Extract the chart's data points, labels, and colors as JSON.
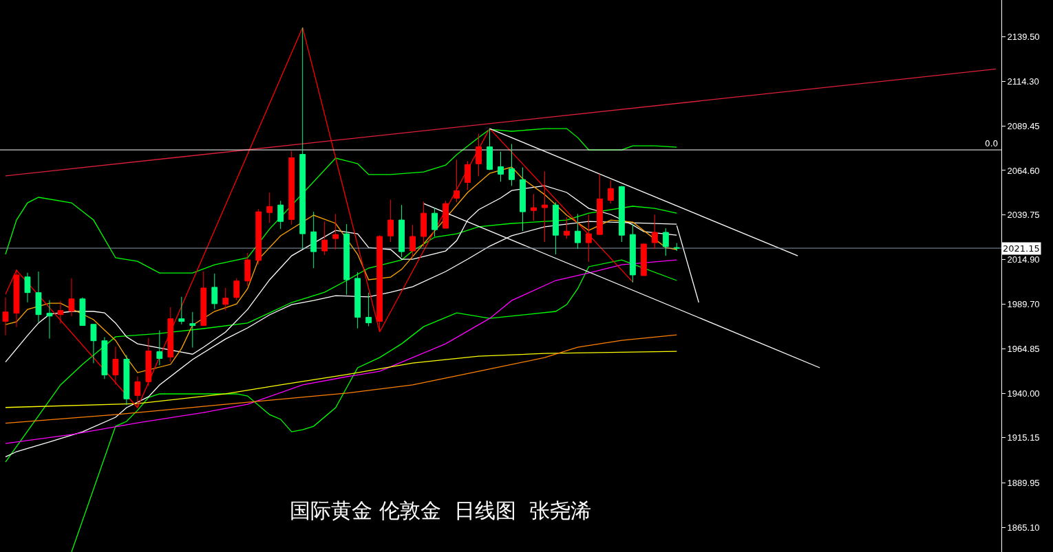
{
  "chart_data": {
    "type": "candlestick",
    "annotations": [
      "国际黄金 伦敦金  日线图  张尧浠",
      {
        "text": "0.0",
        "y": 2076.1
      }
    ],
    "categories": [
      null,
      null,
      null,
      null,
      null,
      null,
      null,
      null,
      null,
      null,
      null,
      null,
      null,
      null,
      null,
      null,
      null,
      null,
      null,
      null,
      null,
      null,
      null,
      null,
      null,
      null,
      null,
      null,
      null,
      null,
      null,
      null,
      null,
      null,
      null,
      null,
      null,
      null,
      null,
      null,
      null,
      null,
      null,
      null,
      null,
      null,
      null,
      null,
      null,
      null,
      null,
      null,
      null,
      null,
      null,
      null,
      null,
      null,
      null,
      null,
      null,
      null,
      null,
      null,
      null,
      null,
      null,
      null,
      null,
      null,
      null,
      null,
      null,
      null,
      null,
      null,
      null,
      null,
      null,
      null,
      null,
      null,
      null,
      null,
      null,
      null,
      null,
      null,
      null,
      null,
      null
    ],
    "ohlc": [
      [
        1980.2,
        1993.6,
        1972.5,
        1985.5
      ],
      [
        1984.8,
        2009.3,
        1977.1,
        2006.2
      ],
      [
        2005.1,
        2007.4,
        1990.9,
        1996.3
      ],
      [
        1996.3,
        2008.1,
        1979.8,
        1984.0
      ],
      [
        1984.8,
        1992.1,
        1970.6,
        1983.2
      ],
      [
        1984.0,
        1991.7,
        1979.0,
        1986.3
      ],
      [
        1985.9,
        2004.3,
        1983.2,
        1992.8
      ],
      [
        1992.8,
        1993.6,
        1977.9,
        1977.9
      ],
      [
        1978.6,
        1978.6,
        1956.8,
        1969.4
      ],
      [
        1969.4,
        1971.4,
        1948.0,
        1950.3
      ],
      [
        1950.3,
        1966.0,
        1944.9,
        1959.1
      ],
      [
        1959.1,
        1961.4,
        1933.4,
        1936.9
      ],
      [
        1938.8,
        1949.5,
        1932.7,
        1946.5
      ],
      [
        1946.5,
        1971.0,
        1944.2,
        1963.7
      ],
      [
        1963.3,
        1975.2,
        1955.7,
        1959.5
      ],
      [
        1960.3,
        1988.2,
        1957.6,
        1981.7
      ],
      [
        1981.7,
        1994.0,
        1978.6,
        1980.2
      ],
      [
        1979.0,
        1985.5,
        1965.6,
        1977.9
      ],
      [
        1977.9,
        2008.1,
        1977.9,
        1998.9
      ],
      [
        1999.3,
        2007.0,
        1987.1,
        1990.1
      ],
      [
        1989.7,
        1998.9,
        1986.3,
        1993.2
      ],
      [
        1993.6,
        2004.3,
        1992.1,
        2002.8
      ],
      [
        2002.8,
        2018.5,
        2000.1,
        2014.6
      ],
      [
        2014.3,
        2043.0,
        2012.0,
        2041.5
      ],
      [
        2041.1,
        2052.2,
        2035.3,
        2044.5
      ],
      [
        2045.3,
        2047.6,
        2031.9,
        2036.1
      ],
      [
        2037.2,
        2075.5,
        2034.2,
        2071.7
      ],
      [
        2073.6,
        2144.5,
        2020.8,
        2029.2
      ],
      [
        2030.3,
        2041.5,
        2010.0,
        2019.2
      ],
      [
        2019.6,
        2036.1,
        2017.3,
        2025.7
      ],
      [
        2026.5,
        2040.3,
        2020.4,
        2028.8
      ],
      [
        2029.2,
        2034.6,
        1995.1,
        2003.5
      ],
      [
        2004.3,
        2007.8,
        1976.3,
        1982.5
      ],
      [
        1982.5,
        1996.3,
        1977.5,
        1979.4
      ],
      [
        1980.2,
        2028.4,
        1974.8,
        2027.7
      ],
      [
        2028.0,
        2048.3,
        2024.6,
        2036.9
      ],
      [
        2036.9,
        2045.3,
        2016.2,
        2019.2
      ],
      [
        2019.6,
        2034.2,
        2016.2,
        2027.7
      ],
      [
        2027.7,
        2047.2,
        2021.9,
        2040.7
      ],
      [
        2040.7,
        2043.8,
        2027.7,
        2031.5
      ],
      [
        2032.3,
        2047.6,
        2032.3,
        2046.1
      ],
      [
        2049.1,
        2070.6,
        2046.8,
        2053.3
      ],
      [
        2057.9,
        2069.8,
        2053.7,
        2067.9
      ],
      [
        2068.3,
        2085.1,
        2061.4,
        2077.8
      ],
      [
        2077.8,
        2088.2,
        2064.8,
        2065.2
      ],
      [
        2066.7,
        2075.1,
        2058.3,
        2062.5
      ],
      [
        2065.6,
        2079.4,
        2056.0,
        2059.5
      ],
      [
        2059.5,
        2066.3,
        2030.7,
        2041.5
      ],
      [
        2042.2,
        2051.4,
        2036.5,
        2043.8
      ],
      [
        2043.8,
        2064.1,
        2024.6,
        2045.3
      ],
      [
        2045.3,
        2046.8,
        2017.7,
        2028.4
      ],
      [
        2028.4,
        2038.4,
        2026.5,
        2030.7
      ],
      [
        2030.7,
        2040.3,
        2020.8,
        2024.2
      ],
      [
        2024.2,
        2039.9,
        2013.5,
        2029.2
      ],
      [
        2028.8,
        2062.5,
        2028.8,
        2048.7
      ],
      [
        2047.9,
        2059.1,
        2046.1,
        2054.5
      ],
      [
        2055.6,
        2056.0,
        2024.6,
        2028.4
      ],
      [
        2028.8,
        2034.6,
        2002.0,
        2006.2
      ],
      [
        2005.8,
        2023.8,
        2005.8,
        2023.5
      ],
      [
        2024.2,
        2039.9,
        2020.8,
        2030.0
      ],
      [
        2030.0,
        2032.3,
        2016.9,
        2022.0
      ],
      [
        2021.5,
        2024.0,
        2019.6,
        2021.15
      ],
      null,
      null,
      null,
      null,
      null,
      null,
      null,
      null,
      null,
      null,
      null,
      null,
      null,
      null,
      null,
      null,
      null,
      null,
      null,
      null,
      null,
      null,
      null,
      null,
      null,
      null,
      null,
      null,
      null
    ],
    "colors": [
      "#ff0000",
      "#ff0000",
      "#00ff80",
      "#00ff80",
      "#00ff80",
      "#ff0000",
      "#ff0000",
      "#00ff80",
      "#00ff80",
      "#00ff80",
      "#ff0000",
      "#00ff80",
      "#ff0000",
      "#ff0000",
      "#00ff80",
      "#ff0000",
      "#00ff80",
      "#00ff80",
      "#ff0000",
      "#00ff80",
      "#ff0000",
      "#ff0000",
      "#ff0000",
      "#ff0000",
      "#ff0000",
      "#00ff80",
      "#ff0000",
      "#00ff80",
      "#00ff80",
      "#ff0000",
      "#ff0000",
      "#00ff80",
      "#00ff80",
      "#00ff80",
      "#ff0000",
      "#ff0000",
      "#00ff80",
      "#ff0000",
      "#ff0000",
      "#00ff80",
      "#ff0000",
      "#ff0000",
      "#ff0000",
      "#ff0000",
      "#00ff80",
      "#00ff80",
      "#00ff80",
      "#00ff80",
      "#ff0000",
      "#ff0000",
      "#00ff80",
      "#ff0000",
      "#00ff80",
      "#ff0000",
      "#ff0000",
      "#ff0000",
      "#00ff80",
      "#00ff80",
      "#ff0000",
      "#ff0000",
      "#00ff80",
      "#00ff80",
      null,
      null,
      null,
      null,
      null,
      null,
      null,
      null,
      null,
      null,
      null,
      null,
      null,
      null,
      null,
      null,
      null,
      null,
      null,
      null,
      null,
      null,
      null,
      null,
      null,
      null,
      null,
      null,
      null
    ],
    "series": [
      {
        "type": "line",
        "color": "#00ff00",
        "values": [
          2017.7,
          2036.9,
          2046.5,
          2049.6,
          null,
          null,
          2046.5,
          null,
          2036.9,
          null,
          2015.8,
          null,
          2013.8,
          null,
          2007.3,
          null,
          null,
          2007.3,
          null,
          2011.9,
          null,
          null,
          2015.8,
          null,
          2031.9,
          null,
          null,
          null,
          null,
          null,
          2071.5,
          null,
          2068.4,
          2062.3,
          null,
          2062.3,
          null,
          null,
          2063.8,
          null,
          2067.6,
          2073.4,
          null,
          2083.0,
          2087.6,
          null,
          2086.5,
          null,
          null,
          2088.0,
          null,
          2088.0,
          2083.0,
          2076.1,
          null,
          null,
          2076.1,
          2078.4,
          null,
          2078.4,
          null,
          2077.6,
          null,
          null,
          null,
          null,
          null,
          null,
          null,
          null,
          null,
          null,
          null,
          null,
          null,
          null,
          null,
          null,
          null,
          null,
          null,
          null,
          null,
          null,
          null,
          null,
          null,
          null,
          null,
          null,
          null
        ]
      },
      {
        "type": "line",
        "color": "#00ff00",
        "values": [
          1901.6,
          null,
          null,
          null,
          null,
          1944.7,
          null,
          1956.2,
          null,
          null,
          1971.6,
          null,
          null,
          null,
          1973.5,
          null,
          null,
          null,
          1976.2,
          null,
          null,
          null,
          1979.3,
          null,
          1985.0,
          null,
          1990.8,
          null,
          null,
          1996.5,
          null,
          2003.1,
          null,
          2010.0,
          null,
          null,
          2014.6,
          2019.6,
          null,
          2027.3,
          null,
          2029.2,
          null,
          2033.1,
          null,
          null,
          2035.0,
          null,
          null,
          2036.1,
          null,
          2036.9,
          null,
          2040.7,
          null,
          null,
          null,
          2044.6,
          null,
          2043.4,
          null,
          2040.7,
          null,
          null,
          null,
          null,
          null,
          null,
          null,
          null,
          null,
          null,
          null,
          null,
          null,
          null,
          null,
          null,
          null,
          null,
          null,
          null,
          null,
          null,
          null,
          null,
          null,
          null,
          null,
          null,
          null
        ]
      },
      {
        "type": "line",
        "color": "#00ff00",
        "values": [
          null,
          null,
          null,
          null,
          null,
          null,
          1851.3,
          null,
          null,
          null,
          1921.6,
          1924.3,
          1930.5,
          1937.7,
          1939.7,
          null,
          null,
          1939.7,
          null,
          null,
          null,
          1939.7,
          1938.5,
          null,
          1928.1,
          1925.5,
          1918.5,
          1919.7,
          1921.6,
          null,
          1932.0,
          null,
          1954.3,
          null,
          1960.0,
          null,
          1967.7,
          null,
          1977.3,
          null,
          null,
          1985.0,
          null,
          null,
          1981.9,
          null,
          null,
          null,
          null,
          null,
          1985.8,
          1989.6,
          1998.5,
          2010.8,
          null,
          null,
          2014.6,
          null,
          null,
          null,
          null,
          2003.1,
          null,
          null,
          null,
          null,
          null,
          null,
          null,
          null,
          null,
          null,
          null,
          null,
          null,
          null,
          null,
          null,
          null,
          null,
          null,
          null,
          null,
          null,
          null,
          null,
          null,
          null,
          null,
          null,
          null
        ]
      },
      {
        "type": "line",
        "color": "#ffffff",
        "values": [
          1957.5,
          null,
          1972.3,
          1979.3,
          1984.2,
          null,
          1985.8,
          null,
          1985.8,
          1985.0,
          1979.3,
          1971.6,
          1967.7,
          null,
          null,
          null,
          null,
          1961.9,
          1965.8,
          null,
          1974.3,
          null,
          1986.9,
          null,
          2003.5,
          null,
          2016.9,
          null,
          null,
          null,
          2031.1,
          null,
          2029.2,
          2021.5,
          null,
          2020.4,
          2015.0,
          2015.0,
          null,
          null,
          2019.6,
          2025.4,
          2036.9,
          2042.7,
          null,
          2049.2,
          2053.4,
          null,
          null,
          2056.1,
          null,
          2052.3,
          null,
          2043.4,
          null,
          2040.0,
          null,
          2034.2,
          2030.4,
          null,
          null,
          2028.4,
          null,
          null,
          null,
          null,
          null,
          null,
          null,
          null,
          null,
          null,
          null,
          null,
          null,
          null,
          null,
          null,
          null,
          null,
          null,
          null,
          null,
          null,
          null,
          null,
          null,
          null,
          null,
          null,
          null
        ]
      },
      {
        "type": "line",
        "color": "#ffffff",
        "values": [
          1904.5,
          1907.4,
          null,
          null,
          1912.8,
          null,
          null,
          1918.5,
          null,
          null,
          1926.6,
          1932.0,
          null,
          1938.1,
          1944.7,
          null,
          null,
          1958.9,
          null,
          null,
          1970.4,
          null,
          1976.6,
          null,
          1983.9,
          null,
          1989.6,
          null,
          1991.9,
          null,
          1994.6,
          null,
          null,
          1993.9,
          null,
          1996.5,
          null,
          1999.6,
          null,
          null,
          2008.1,
          null,
          2015.0,
          null,
          2022.3,
          null,
          2028.1,
          null,
          null,
          2033.1,
          null,
          null,
          null,
          2036.1,
          null,
          null,
          null,
          null,
          null,
          null,
          null,
          2034.6,
          null,
          null,
          null,
          null,
          null,
          null,
          null,
          null,
          null,
          null,
          null,
          null,
          null,
          null,
          null,
          null,
          null,
          null,
          null,
          null,
          null,
          null,
          null,
          null,
          null,
          null,
          null,
          null,
          null
        ]
      },
      {
        "type": "line",
        "color": "#ffa500",
        "values": [
          1978.5,
          1980.0,
          1986.9,
          null,
          1990.4,
          1990.4,
          null,
          null,
          1981.2,
          null,
          1969.6,
          1960.0,
          1951.6,
          null,
          null,
          1956.2,
          1965.1,
          1978.1,
          null,
          1985.8,
          null,
          1990.0,
          1998.5,
          2015.0,
          null,
          2028.1,
          null,
          null,
          2039.6,
          null,
          2035.0,
          null,
          2017.7,
          2003.5,
          null,
          2005.0,
          2009.3,
          null,
          null,
          null,
          null,
          null,
          2052.3,
          null,
          2063.0,
          null,
          2066.5,
          2060.0,
          null,
          2051.1,
          null,
          2039.6,
          null,
          2031.1,
          null,
          2036.9,
          null,
          2035.7,
          null,
          null,
          2021.5,
          2020.4,
          null,
          null,
          null,
          null,
          null,
          null,
          null,
          null,
          null,
          null,
          null,
          null,
          null,
          null,
          null,
          null,
          null,
          null,
          null,
          null,
          null,
          null,
          null,
          null,
          null,
          null,
          null,
          null,
          null
        ]
      },
      {
        "type": "line",
        "color": "#ff00ff",
        "values": [
          1912.0,
          null,
          null,
          null,
          null,
          null,
          1917.0,
          null,
          null,
          null,
          null,
          null,
          1923.5,
          null,
          null,
          null,
          null,
          null,
          1929.3,
          null,
          null,
          null,
          1933.9,
          null,
          null,
          null,
          null,
          1944.7,
          null,
          null,
          null,
          1949.3,
          null,
          null,
          1952.3,
          null,
          null,
          1960.0,
          null,
          null,
          1967.7,
          null,
          null,
          null,
          1981.9,
          null,
          1991.9,
          null,
          null,
          null,
          2003.1,
          null,
          null,
          2007.3,
          null,
          null,
          2011.9,
          null,
          null,
          null,
          null,
          2014.6,
          null,
          null,
          null,
          null,
          null,
          null,
          null,
          null,
          null,
          null,
          null,
          null,
          null,
          null,
          null,
          null,
          null,
          null,
          null,
          null,
          null,
          null,
          null,
          null,
          null,
          null,
          null,
          null,
          null
        ]
      },
      {
        "type": "line",
        "color": "#ffff00",
        "values": [
          1932.1,
          null,
          null,
          null,
          null,
          null,
          null,
          null,
          null,
          null,
          null,
          null,
          1934.3,
          null,
          null,
          null,
          null,
          null,
          null,
          null,
          1939.7,
          null,
          null,
          null,
          null,
          1944.7,
          null,
          null,
          null,
          null,
          null,
          1950.5,
          null,
          null,
          null,
          null,
          null,
          1956.9,
          null,
          null,
          null,
          null,
          null,
          1960.8,
          null,
          null,
          null,
          null,
          null,
          1962.3,
          null,
          null,
          null,
          null,
          null,
          null,
          null,
          null,
          null,
          null,
          null,
          1963.5,
          null,
          null,
          null,
          null,
          null,
          null,
          null,
          null,
          null,
          null,
          null,
          null,
          null,
          null,
          null,
          null,
          null,
          null,
          null,
          null,
          null,
          null,
          null,
          null,
          null,
          null,
          null,
          null,
          null
        ]
      },
      {
        "type": "line",
        "color": "#ff8000",
        "values": [
          1923.3,
          null,
          null,
          null,
          null,
          null,
          null,
          null,
          null,
          null,
          1928.1,
          null,
          null,
          null,
          null,
          null,
          null,
          null,
          null,
          null,
          1933.9,
          null,
          null,
          null,
          null,
          null,
          null,
          null,
          null,
          null,
          null,
          1940.1,
          null,
          null,
          null,
          null,
          null,
          1944.7,
          null,
          null,
          null,
          null,
          null,
          1952.3,
          null,
          null,
          null,
          null,
          null,
          1960.0,
          null,
          null,
          1965.8,
          null,
          null,
          null,
          1969.6,
          null,
          null,
          null,
          null,
          1972.7,
          null,
          null,
          null,
          null,
          null,
          null,
          null,
          null,
          null,
          null,
          null,
          null,
          null,
          null,
          null,
          null,
          null,
          null,
          null,
          null,
          null,
          null,
          null,
          null,
          null,
          null,
          null,
          null,
          null
        ]
      },
      {
        "type": "line",
        "color": "#e0203a",
        "values": [
          2061.6,
          null,
          null,
          null,
          null,
          null,
          null,
          null,
          null,
          null,
          null,
          null,
          null,
          null,
          null,
          null,
          null,
          null,
          null,
          null,
          null,
          null,
          null,
          null,
          null,
          null,
          null,
          null,
          null,
          null,
          null,
          null,
          null,
          null,
          null,
          null,
          null,
          null,
          null,
          null,
          null,
          null,
          null,
          null,
          null,
          null,
          null,
          null,
          null,
          null,
          null,
          null,
          null,
          null,
          null,
          null,
          null,
          null,
          null,
          null,
          null,
          null,
          null,
          null,
          null,
          null,
          null,
          null,
          null,
          null,
          null,
          null,
          null,
          null,
          null,
          null,
          null,
          null,
          null,
          null,
          null,
          null,
          null,
          null,
          null,
          null,
          null,
          null,
          null,
          null,
          2121.3
        ]
      },
      {
        "type": "line",
        "color": "#ff0000",
        "values": [
          1995.4,
          2008.8,
          null,
          null,
          null,
          null,
          null,
          null,
          null,
          null,
          null,
          null,
          1932.0,
          null,
          null,
          null,
          null,
          null,
          null,
          null,
          null,
          null,
          null,
          null,
          null,
          null,
          null,
          2144.5,
          null,
          null,
          null,
          null,
          null,
          null,
          1974.3,
          null,
          null,
          null,
          null,
          null,
          null,
          null,
          null,
          null,
          2088.0,
          null,
          null,
          null,
          null,
          null,
          null,
          null,
          null,
          null,
          null,
          null,
          null,
          2002.3,
          null,
          null,
          null,
          null,
          null,
          null,
          null,
          null,
          null,
          null,
          null,
          null,
          null,
          null,
          null,
          null,
          null,
          null,
          null,
          null,
          null,
          null,
          null,
          null,
          null,
          null,
          null,
          null,
          null,
          null,
          null,
          null,
          null
        ]
      },
      {
        "type": "line",
        "color": "#ffffff",
        "values": [
          null,
          null,
          null,
          null,
          null,
          null,
          null,
          null,
          null,
          null,
          null,
          null,
          null,
          null,
          null,
          null,
          null,
          null,
          null,
          null,
          null,
          null,
          null,
          null,
          null,
          null,
          null,
          null,
          null,
          null,
          null,
          null,
          null,
          null,
          null,
          null,
          null,
          null,
          null,
          null,
          null,
          null,
          null,
          null,
          2088.0,
          null,
          null,
          null,
          null,
          null,
          null,
          null,
          null,
          null,
          null,
          null,
          null,
          null,
          null,
          null,
          null,
          null,
          null,
          null,
          null,
          null,
          null,
          null,
          null,
          null,
          null,
          null,
          2016.9,
          null,
          null,
          null,
          null,
          null,
          null,
          null,
          null,
          null,
          null,
          null,
          null,
          null,
          null,
          null,
          null,
          null,
          null
        ]
      },
      {
        "type": "line",
        "color": "#ffffff",
        "values": [
          null,
          null,
          null,
          null,
          null,
          null,
          null,
          null,
          null,
          null,
          null,
          null,
          null,
          null,
          null,
          null,
          null,
          null,
          null,
          null,
          null,
          null,
          null,
          null,
          null,
          null,
          null,
          null,
          null,
          null,
          null,
          null,
          null,
          null,
          null,
          null,
          null,
          null,
          2046.1,
          null,
          null,
          null,
          null,
          null,
          null,
          null,
          null,
          null,
          null,
          null,
          null,
          null,
          null,
          null,
          null,
          null,
          null,
          null,
          null,
          null,
          null,
          null,
          null,
          null,
          null,
          null,
          null,
          null,
          null,
          null,
          null,
          null,
          null,
          null,
          1954.3,
          null,
          null,
          null,
          null,
          null,
          null,
          null,
          null,
          null,
          null,
          null,
          null,
          null,
          null,
          null,
          null
        ]
      },
      {
        "type": "line",
        "color": "#ffffff",
        "values": [
          null,
          null,
          null,
          null,
          null,
          null,
          null,
          null,
          null,
          null,
          null,
          null,
          null,
          null,
          null,
          null,
          null,
          null,
          null,
          null,
          null,
          null,
          null,
          null,
          null,
          null,
          null,
          null,
          null,
          null,
          null,
          null,
          null,
          null,
          null,
          null,
          null,
          null,
          null,
          null,
          null,
          null,
          null,
          null,
          null,
          null,
          null,
          null,
          null,
          null,
          null,
          null,
          null,
          null,
          null,
          null,
          null,
          null,
          null,
          null,
          null,
          2033.8,
          null,
          1990.8,
          null,
          null,
          null,
          null,
          null,
          null,
          null,
          null,
          null,
          null,
          null,
          null,
          null,
          null,
          null,
          null,
          null,
          null,
          null,
          null,
          null,
          null,
          null,
          null,
          null,
          null,
          null
        ]
      }
    ],
    "ref_lines": [
      {
        "axis": "y",
        "value": 2076.1,
        "color": "#ffffff"
      },
      {
        "axis": "y",
        "value": 2021.15,
        "label": "2021.15",
        "color": "#8a98a8"
      }
    ],
    "ylim": [
      1851.3,
      2159.9
    ],
    "yticks": [
      {
        "value": 2139.5,
        "label": "2139.50"
      },
      {
        "value": 2114.3,
        "label": "2114.30"
      },
      {
        "value": 2089.45,
        "label": "2089.45"
      },
      {
        "value": 2064.6,
        "label": "2064.60"
      },
      {
        "value": 2039.75,
        "label": "2039.75"
      },
      {
        "value": 2014.9,
        "label": "2014.90"
      },
      {
        "value": 1989.7,
        "label": "1989.70"
      },
      {
        "value": 1964.85,
        "label": "1964.85"
      },
      {
        "value": 1940.0,
        "label": "1940.00"
      },
      {
        "value": 1915.15,
        "label": "1915.15"
      },
      {
        "value": 1889.95,
        "label": "1889.95"
      },
      {
        "value": 1865.1,
        "label": "1865.10"
      }
    ],
    "tick_labels": "y"
  }
}
